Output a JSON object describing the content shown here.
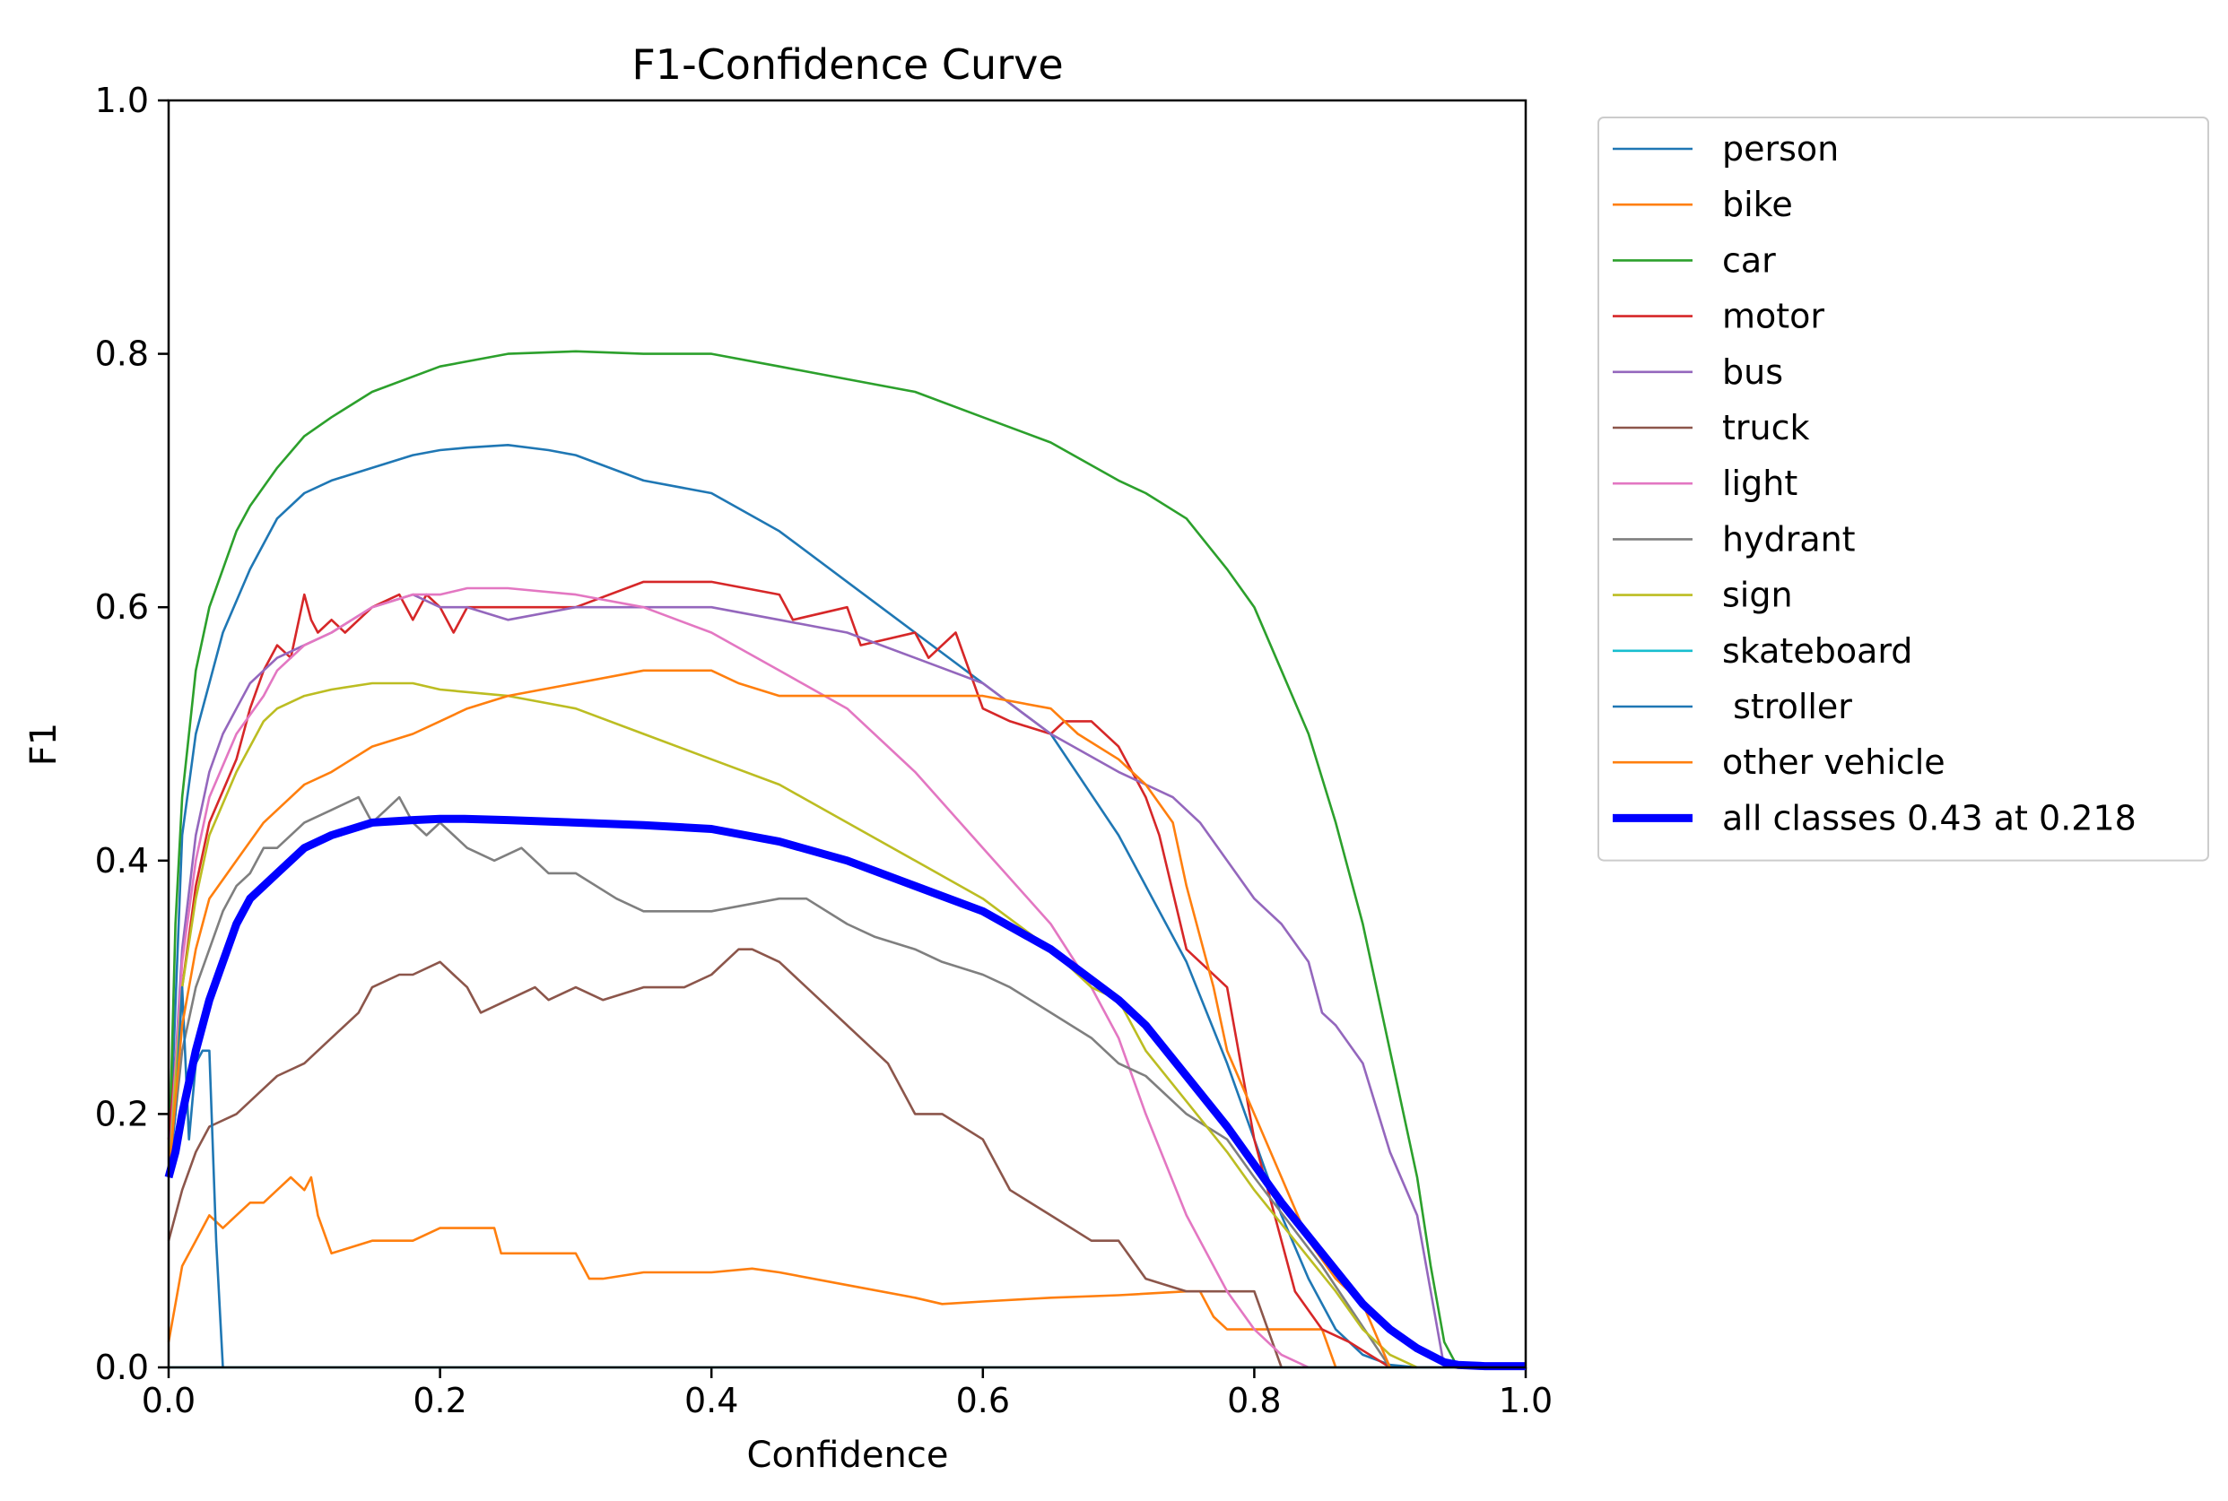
{
  "chart_data": {
    "type": "line",
    "title": "F1-Confidence Curve",
    "xlabel": "Confidence",
    "ylabel": "F1",
    "xlim": [
      0.0,
      1.0
    ],
    "ylim": [
      0.0,
      1.0
    ],
    "grid": false,
    "legend_position": "outside-right",
    "x_ticks": [
      0.0,
      0.2,
      0.4,
      0.6,
      0.8,
      1.0
    ],
    "x_tick_labels": [
      "0.0",
      "0.2",
      "0.4",
      "0.6",
      "0.8",
      "1.0"
    ],
    "y_ticks": [
      0.0,
      0.2,
      0.4,
      0.6,
      0.8,
      1.0
    ],
    "y_tick_labels": [
      "0.0",
      "0.2",
      "0.4",
      "0.6",
      "0.8",
      "1.0"
    ],
    "series": [
      {
        "name": "person",
        "color": "#1f77b4",
        "thick": false,
        "x": [
          0,
          0.01,
          0.02,
          0.04,
          0.06,
          0.08,
          0.1,
          0.12,
          0.15,
          0.18,
          0.2,
          0.22,
          0.25,
          0.28,
          0.3,
          0.35,
          0.4,
          0.45,
          0.5,
          0.55,
          0.6,
          0.65,
          0.7,
          0.75,
          0.78,
          0.8,
          0.82,
          0.84,
          0.86,
          0.88,
          0.9,
          0.92
        ],
        "y": [
          0.15,
          0.42,
          0.5,
          0.58,
          0.63,
          0.67,
          0.69,
          0.7,
          0.71,
          0.72,
          0.724,
          0.726,
          0.728,
          0.724,
          0.72,
          0.7,
          0.69,
          0.66,
          0.62,
          0.58,
          0.54,
          0.5,
          0.42,
          0.32,
          0.24,
          0.18,
          0.12,
          0.07,
          0.03,
          0.01,
          0.002,
          0
        ]
      },
      {
        "name": "bike",
        "color": "#ff7f0e",
        "thick": false,
        "x": [
          0,
          0.005,
          0.01,
          0.02,
          0.03,
          0.04,
          0.05,
          0.06,
          0.07,
          0.08,
          0.09,
          0.1,
          0.105,
          0.11,
          0.12,
          0.15,
          0.18,
          0.2,
          0.24,
          0.245,
          0.25,
          0.3,
          0.31,
          0.32,
          0.35,
          0.4,
          0.43,
          0.45,
          0.5,
          0.55,
          0.57,
          0.6,
          0.65,
          0.7,
          0.75,
          0.76,
          0.77,
          0.78,
          0.8,
          0.85,
          0.86
        ],
        "y": [
          0.02,
          0.05,
          0.08,
          0.1,
          0.12,
          0.11,
          0.12,
          0.13,
          0.13,
          0.14,
          0.15,
          0.14,
          0.15,
          0.12,
          0.09,
          0.1,
          0.1,
          0.11,
          0.11,
          0.09,
          0.09,
          0.09,
          0.07,
          0.07,
          0.075,
          0.075,
          0.078,
          0.075,
          0.065,
          0.055,
          0.05,
          0.052,
          0.055,
          0.057,
          0.06,
          0.06,
          0.04,
          0.03,
          0.03,
          0.03,
          0
        ]
      },
      {
        "name": "car",
        "color": "#2ca02c",
        "thick": false,
        "x": [
          0,
          0.005,
          0.01,
          0.02,
          0.03,
          0.04,
          0.05,
          0.06,
          0.08,
          0.1,
          0.12,
          0.15,
          0.2,
          0.25,
          0.3,
          0.35,
          0.4,
          0.45,
          0.5,
          0.55,
          0.6,
          0.65,
          0.7,
          0.72,
          0.75,
          0.78,
          0.8,
          0.82,
          0.84,
          0.86,
          0.88,
          0.9,
          0.92,
          0.93,
          0.94,
          0.95
        ],
        "y": [
          0.15,
          0.35,
          0.45,
          0.55,
          0.6,
          0.63,
          0.66,
          0.68,
          0.71,
          0.735,
          0.75,
          0.77,
          0.79,
          0.8,
          0.802,
          0.8,
          0.8,
          0.79,
          0.78,
          0.77,
          0.75,
          0.73,
          0.7,
          0.69,
          0.67,
          0.63,
          0.6,
          0.55,
          0.5,
          0.43,
          0.35,
          0.25,
          0.15,
          0.08,
          0.02,
          0
        ]
      },
      {
        "name": "motor",
        "color": "#d62728",
        "thick": false,
        "x": [
          0,
          0.01,
          0.02,
          0.03,
          0.05,
          0.06,
          0.07,
          0.08,
          0.09,
          0.1,
          0.105,
          0.11,
          0.12,
          0.13,
          0.14,
          0.15,
          0.17,
          0.18,
          0.19,
          0.2,
          0.21,
          0.22,
          0.25,
          0.3,
          0.35,
          0.4,
          0.45,
          0.46,
          0.5,
          0.51,
          0.55,
          0.56,
          0.58,
          0.6,
          0.62,
          0.65,
          0.66,
          0.68,
          0.7,
          0.72,
          0.73,
          0.75,
          0.76,
          0.78,
          0.8,
          0.82,
          0.83,
          0.85,
          0.87,
          0.9
        ],
        "y": [
          0.18,
          0.3,
          0.38,
          0.43,
          0.48,
          0.52,
          0.55,
          0.57,
          0.56,
          0.61,
          0.59,
          0.58,
          0.59,
          0.58,
          0.59,
          0.6,
          0.61,
          0.59,
          0.61,
          0.6,
          0.58,
          0.6,
          0.6,
          0.6,
          0.62,
          0.62,
          0.61,
          0.59,
          0.6,
          0.57,
          0.58,
          0.56,
          0.58,
          0.52,
          0.51,
          0.5,
          0.51,
          0.51,
          0.49,
          0.45,
          0.42,
          0.33,
          0.32,
          0.3,
          0.18,
          0.1,
          0.06,
          0.03,
          0.02,
          0
        ]
      },
      {
        "name": "bus",
        "color": "#9467bd",
        "thick": false,
        "x": [
          0,
          0.01,
          0.02,
          0.03,
          0.04,
          0.05,
          0.06,
          0.07,
          0.08,
          0.1,
          0.12,
          0.15,
          0.18,
          0.2,
          0.22,
          0.25,
          0.3,
          0.35,
          0.4,
          0.45,
          0.5,
          0.55,
          0.6,
          0.65,
          0.7,
          0.72,
          0.74,
          0.76,
          0.78,
          0.8,
          0.82,
          0.84,
          0.85,
          0.86,
          0.88,
          0.9,
          0.92,
          0.93,
          0.94
        ],
        "y": [
          0.15,
          0.33,
          0.42,
          0.47,
          0.5,
          0.52,
          0.54,
          0.55,
          0.56,
          0.57,
          0.58,
          0.6,
          0.61,
          0.6,
          0.6,
          0.59,
          0.6,
          0.6,
          0.6,
          0.59,
          0.58,
          0.56,
          0.54,
          0.5,
          0.47,
          0.46,
          0.45,
          0.43,
          0.4,
          0.37,
          0.35,
          0.32,
          0.28,
          0.27,
          0.24,
          0.17,
          0.12,
          0.06,
          0
        ]
      },
      {
        "name": "truck",
        "color": "#8c564b",
        "thick": false,
        "x": [
          0,
          0.01,
          0.02,
          0.03,
          0.05,
          0.07,
          0.08,
          0.1,
          0.12,
          0.14,
          0.15,
          0.17,
          0.18,
          0.2,
          0.21,
          0.22,
          0.23,
          0.25,
          0.27,
          0.28,
          0.3,
          0.32,
          0.35,
          0.38,
          0.4,
          0.42,
          0.43,
          0.45,
          0.47,
          0.5,
          0.53,
          0.55,
          0.57,
          0.6,
          0.62,
          0.65,
          0.68,
          0.7,
          0.72,
          0.75,
          0.8,
          0.82
        ],
        "y": [
          0.1,
          0.14,
          0.17,
          0.19,
          0.2,
          0.22,
          0.23,
          0.24,
          0.26,
          0.28,
          0.3,
          0.31,
          0.31,
          0.32,
          0.31,
          0.3,
          0.28,
          0.29,
          0.3,
          0.29,
          0.3,
          0.29,
          0.3,
          0.3,
          0.31,
          0.33,
          0.33,
          0.32,
          0.3,
          0.27,
          0.24,
          0.2,
          0.2,
          0.18,
          0.14,
          0.12,
          0.1,
          0.1,
          0.07,
          0.06,
          0.06,
          0
        ]
      },
      {
        "name": "light",
        "color": "#e377c2",
        "thick": false,
        "x": [
          0,
          0.01,
          0.02,
          0.03,
          0.05,
          0.07,
          0.08,
          0.1,
          0.12,
          0.15,
          0.18,
          0.2,
          0.22,
          0.25,
          0.3,
          0.35,
          0.4,
          0.45,
          0.5,
          0.55,
          0.6,
          0.65,
          0.68,
          0.7,
          0.72,
          0.75,
          0.78,
          0.8,
          0.82,
          0.84
        ],
        "y": [
          0.15,
          0.32,
          0.4,
          0.45,
          0.5,
          0.53,
          0.55,
          0.57,
          0.58,
          0.6,
          0.61,
          0.61,
          0.615,
          0.615,
          0.61,
          0.6,
          0.58,
          0.55,
          0.52,
          0.47,
          0.41,
          0.35,
          0.3,
          0.26,
          0.2,
          0.12,
          0.06,
          0.03,
          0.01,
          0
        ]
      },
      {
        "name": "hydrant",
        "color": "#7f7f7f",
        "thick": false,
        "x": [
          0,
          0.01,
          0.02,
          0.03,
          0.04,
          0.05,
          0.06,
          0.07,
          0.08,
          0.1,
          0.12,
          0.14,
          0.15,
          0.16,
          0.17,
          0.18,
          0.19,
          0.2,
          0.21,
          0.22,
          0.24,
          0.26,
          0.28,
          0.3,
          0.33,
          0.35,
          0.4,
          0.45,
          0.47,
          0.5,
          0.52,
          0.55,
          0.57,
          0.6,
          0.62,
          0.65,
          0.68,
          0.7,
          0.72,
          0.75,
          0.78,
          0.8,
          0.85,
          0.9
        ],
        "y": [
          0.15,
          0.25,
          0.3,
          0.33,
          0.36,
          0.38,
          0.39,
          0.41,
          0.41,
          0.43,
          0.44,
          0.45,
          0.43,
          0.44,
          0.45,
          0.43,
          0.42,
          0.43,
          0.42,
          0.41,
          0.4,
          0.41,
          0.39,
          0.39,
          0.37,
          0.36,
          0.36,
          0.37,
          0.37,
          0.35,
          0.34,
          0.33,
          0.32,
          0.31,
          0.3,
          0.28,
          0.26,
          0.24,
          0.23,
          0.2,
          0.18,
          0.15,
          0.08,
          0
        ]
      },
      {
        "name": "sign",
        "color": "#bcbd22",
        "thick": false,
        "x": [
          0,
          0.01,
          0.02,
          0.03,
          0.05,
          0.07,
          0.08,
          0.1,
          0.12,
          0.15,
          0.18,
          0.2,
          0.25,
          0.3,
          0.35,
          0.4,
          0.45,
          0.5,
          0.55,
          0.6,
          0.65,
          0.68,
          0.7,
          0.72,
          0.75,
          0.78,
          0.8,
          0.83,
          0.86,
          0.88,
          0.9,
          0.92
        ],
        "y": [
          0.15,
          0.3,
          0.37,
          0.42,
          0.47,
          0.51,
          0.52,
          0.53,
          0.535,
          0.54,
          0.54,
          0.535,
          0.53,
          0.52,
          0.5,
          0.48,
          0.46,
          0.43,
          0.4,
          0.37,
          0.33,
          0.3,
          0.29,
          0.25,
          0.21,
          0.17,
          0.14,
          0.1,
          0.06,
          0.03,
          0.01,
          0
        ]
      },
      {
        "name": "skateboard",
        "color": "#17becf",
        "thick": false,
        "x": [
          0,
          1.0
        ],
        "y": [
          0,
          0
        ]
      },
      {
        "name": " stroller",
        "color": "#1f77b4",
        "thick": false,
        "x": [
          0,
          0.005,
          0.01,
          0.015,
          0.02,
          0.025,
          0.03,
          0.035,
          0.04
        ],
        "y": [
          0.15,
          0.2,
          0.3,
          0.18,
          0.24,
          0.25,
          0.25,
          0.1,
          0
        ]
      },
      {
        "name": "other vehicle",
        "color": "#ff7f0e",
        "thick": false,
        "x": [
          0,
          0.01,
          0.02,
          0.03,
          0.05,
          0.07,
          0.08,
          0.1,
          0.12,
          0.15,
          0.18,
          0.2,
          0.22,
          0.25,
          0.3,
          0.35,
          0.38,
          0.4,
          0.42,
          0.45,
          0.5,
          0.55,
          0.6,
          0.65,
          0.67,
          0.7,
          0.72,
          0.74,
          0.75,
          0.77,
          0.78,
          0.8,
          0.82,
          0.84,
          0.86,
          0.88,
          0.9
        ],
        "y": [
          0.15,
          0.27,
          0.33,
          0.37,
          0.4,
          0.43,
          0.44,
          0.46,
          0.47,
          0.49,
          0.5,
          0.51,
          0.52,
          0.53,
          0.54,
          0.55,
          0.55,
          0.55,
          0.54,
          0.53,
          0.53,
          0.53,
          0.53,
          0.52,
          0.5,
          0.48,
          0.46,
          0.43,
          0.38,
          0.3,
          0.25,
          0.2,
          0.15,
          0.1,
          0.07,
          0.05,
          0
        ]
      },
      {
        "name": "all classes 0.43 at 0.218",
        "color": "#0000ff",
        "thick": true,
        "x": [
          0,
          0.005,
          0.01,
          0.02,
          0.03,
          0.04,
          0.05,
          0.06,
          0.08,
          0.1,
          0.12,
          0.15,
          0.18,
          0.2,
          0.218,
          0.25,
          0.3,
          0.35,
          0.4,
          0.45,
          0.5,
          0.55,
          0.6,
          0.65,
          0.7,
          0.72,
          0.75,
          0.78,
          0.8,
          0.82,
          0.85,
          0.88,
          0.9,
          0.92,
          0.94,
          0.95,
          0.97,
          1.0
        ],
        "y": [
          0.15,
          0.17,
          0.2,
          0.25,
          0.29,
          0.32,
          0.35,
          0.37,
          0.39,
          0.41,
          0.42,
          0.43,
          0.432,
          0.433,
          0.433,
          0.432,
          0.43,
          0.428,
          0.425,
          0.415,
          0.4,
          0.38,
          0.36,
          0.33,
          0.29,
          0.27,
          0.23,
          0.19,
          0.16,
          0.13,
          0.09,
          0.05,
          0.03,
          0.015,
          0.004,
          0.002,
          0.001,
          0.001
        ]
      }
    ]
  }
}
